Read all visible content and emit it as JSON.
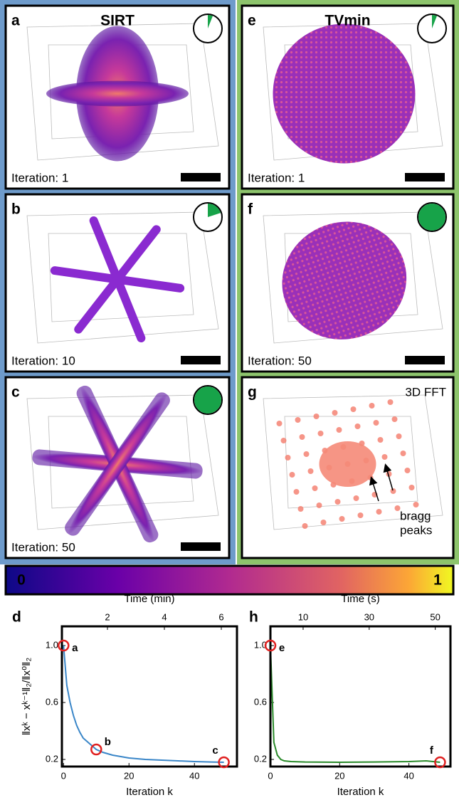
{
  "panels": [
    {
      "label": "a",
      "title": "SIRT",
      "caption": "Iteration: 1",
      "progress": 0.06
    },
    {
      "label": "b",
      "caption": "Iteration: 10",
      "progress": 0.2
    },
    {
      "label": "c",
      "caption": "Iteration: 50",
      "progress": 1
    },
    {
      "label": "e",
      "title": "TVmin",
      "caption": "Iteration: 1",
      "progress": 0.06
    },
    {
      "label": "f",
      "caption": "Iteration: 50",
      "progress": 1
    },
    {
      "label": "g",
      "title": "3D FFT",
      "annotation": [
        "bragg",
        "peaks"
      ]
    }
  ],
  "colorbar": {
    "ticks": [
      0,
      1
    ]
  },
  "chart_data": [
    {
      "type": "line",
      "label": "d",
      "ylabel": "‖xᵏ − xᵏ⁻¹‖₂/‖x⁰‖₂",
      "xlabel": "Iteration k",
      "x2label": "Time (min)",
      "xlim": [
        -0.5,
        53
      ],
      "xticks": [
        0,
        20,
        40
      ],
      "x2lim": [
        0.4,
        6.55
      ],
      "x2ticks": [
        2,
        4,
        6
      ],
      "ylim": [
        0.15,
        1.135
      ],
      "yticks": [
        0.2,
        0.6,
        {
          "value": 1,
          "label": "1.0"
        }
      ],
      "series": [
        {
          "color": "#3a86c8",
          "x": [
            0,
            1,
            2,
            3,
            4,
            5,
            6,
            8,
            10,
            12,
            15,
            20,
            25,
            30,
            35,
            40,
            45,
            49
          ],
          "values": [
            1.0,
            0.72,
            0.6,
            0.51,
            0.44,
            0.39,
            0.35,
            0.31,
            0.27,
            0.25,
            0.23,
            0.21,
            0.2,
            0.195,
            0.19,
            0.185,
            0.182,
            0.18
          ]
        }
      ],
      "markers": {
        "labels": [
          "a",
          "b",
          "c"
        ],
        "x": [
          0,
          10,
          49
        ],
        "values": [
          1.0,
          0.27,
          0.18
        ]
      }
    },
    {
      "type": "line",
      "label": "h",
      "xlabel": "Iteration k",
      "x2label": "Time (s)",
      "xlim": [
        0,
        52
      ],
      "xticks": [
        0,
        20,
        40
      ],
      "x2lim": [
        0.1,
        54.6
      ],
      "x2ticks": [
        10,
        30,
        50
      ],
      "ylim": [
        0.15,
        1.135
      ],
      "yticks": [
        0.2,
        0.6,
        {
          "value": 1,
          "label": "1.0"
        }
      ],
      "series": [
        {
          "color": "#2a8a2a",
          "x": [
            0,
            1,
            2,
            3,
            4,
            6,
            10,
            20,
            30,
            40,
            45,
            49
          ],
          "values": [
            1.0,
            0.32,
            0.23,
            0.2,
            0.19,
            0.185,
            0.182,
            0.18,
            0.182,
            0.185,
            0.19,
            0.18
          ]
        }
      ],
      "markers": {
        "labels": [
          "e",
          "f"
        ],
        "x": [
          0,
          49
        ],
        "values": [
          1.0,
          0.18
        ]
      }
    }
  ]
}
